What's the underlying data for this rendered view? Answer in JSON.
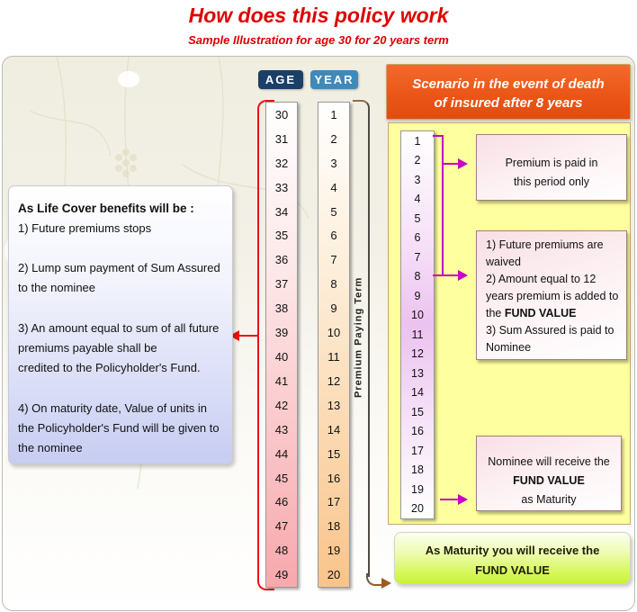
{
  "title": "How does this policy work",
  "subtitle": "Sample Illustration for age 30 for 20 years term",
  "age_column": {
    "header": "AGE",
    "values": [
      30,
      31,
      32,
      33,
      34,
      35,
      36,
      37,
      38,
      39,
      40,
      41,
      42,
      43,
      44,
      45,
      46,
      47,
      48,
      49
    ]
  },
  "year_column": {
    "header": "YEAR",
    "values": [
      1,
      2,
      3,
      4,
      5,
      6,
      7,
      8,
      9,
      10,
      11,
      12,
      13,
      14,
      15,
      16,
      17,
      18,
      19,
      20
    ]
  },
  "premium_term_label": "Premium Paying Term",
  "left_box": {
    "title": "As Life Cover benefits will be :",
    "point1": "1) Future premiums stops",
    "point2": "2) Lump sum payment of Sum Assured to the nominee",
    "point3_line1": "3) An amount equal to sum of all future premiums payable shall be",
    "point3_line2": "credited to the Policyholder's Fund.",
    "point4": "4) On maturity date, Value of units in the Policyholder's Fund will be given to the nominee"
  },
  "scenario": {
    "header_line1": "Scenario in the event of death",
    "header_line2": "of insured  after 8 years",
    "years": [
      1,
      2,
      3,
      4,
      5,
      6,
      7,
      8,
      9,
      10,
      11,
      12,
      13,
      14,
      15,
      16,
      17,
      18,
      19,
      20
    ],
    "premium_box": {
      "line1": "Premium is paid in",
      "line2": "this period only"
    },
    "death_box": {
      "item1": "1) Future premiums are waived",
      "item2_pre": "2) Amount equal to 12 years premium is added to the ",
      "item2_bold": "FUND VALUE",
      "item3": "3) Sum Assured is paid to Nominee"
    },
    "nominee_box": {
      "line1": "Nominee will receive the",
      "bold": "FUND VALUE",
      "line2": "as Maturity"
    }
  },
  "maturity_box": {
    "line1": "As Maturity you will  receive the",
    "bold": "FUND VALUE"
  },
  "colors": {
    "title_red": "#dd0000",
    "age_chip_bg": "#1b3f66",
    "year_chip_bg": "#4089b8",
    "age_col_pink": "#f7a8ac",
    "year_col_peach": "#f9c48b",
    "scenario_header_orange": "#ea5517",
    "scenario_panel_yellow": "#feff9e",
    "scenario_col_lilac": "#ecc2ef",
    "left_box_lavender": "#c7cdf2",
    "maturity_green": "#c9f52e",
    "bracket_red": "#ee1111",
    "bracket_brown": "#9b5a1e",
    "connector_magenta": "#c503c5",
    "panel_cream": "#f0eee0"
  }
}
